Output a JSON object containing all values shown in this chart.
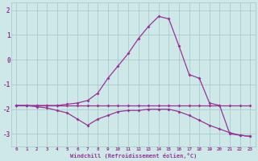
{
  "line1_x": [
    0,
    1,
    2,
    3,
    4,
    5,
    6,
    7,
    8,
    9,
    10,
    11,
    12,
    13,
    14,
    15,
    16,
    17,
    18,
    19,
    20,
    21,
    22,
    23
  ],
  "line1_y": [
    -1.85,
    -1.85,
    -1.85,
    -1.85,
    -1.85,
    -1.85,
    -1.85,
    -1.85,
    -1.85,
    -1.85,
    -1.85,
    -1.85,
    -1.85,
    -1.85,
    -1.85,
    -1.85,
    -1.85,
    -1.85,
    -1.85,
    -1.85,
    -1.85,
    -1.85,
    -1.85,
    -1.85
  ],
  "line2_x": [
    0,
    1,
    2,
    3,
    4,
    5,
    6,
    7,
    8,
    9,
    10,
    11,
    12,
    13,
    14,
    15,
    16,
    17,
    18,
    19,
    20,
    21,
    22,
    23
  ],
  "line2_y": [
    -1.85,
    -1.85,
    -1.9,
    -1.95,
    -2.05,
    -2.15,
    -2.4,
    -2.65,
    -2.4,
    -2.25,
    -2.1,
    -2.05,
    -2.05,
    -2.0,
    -2.0,
    -2.0,
    -2.1,
    -2.25,
    -2.45,
    -2.65,
    -2.8,
    -2.95,
    -3.05,
    -3.1
  ],
  "line3_x": [
    0,
    1,
    2,
    3,
    4,
    5,
    6,
    7,
    8,
    9,
    10,
    11,
    12,
    13,
    14,
    15,
    16,
    17,
    18,
    19,
    20,
    21,
    22,
    23
  ],
  "line3_y": [
    -1.85,
    -1.85,
    -1.85,
    -1.85,
    -1.85,
    -1.8,
    -1.75,
    -1.65,
    -1.35,
    -0.75,
    -0.25,
    0.25,
    0.85,
    1.35,
    1.75,
    1.65,
    0.55,
    -0.6,
    -0.75,
    -1.75,
    -1.85,
    -3.0,
    -3.05,
    -3.1
  ],
  "color": "#993399",
  "bg_color": "#cde8e7",
  "grid_color": "#a8cccc",
  "xlabel": "Windchill (Refroidissement éolien,°C)",
  "xticks": [
    0,
    1,
    2,
    3,
    4,
    5,
    6,
    7,
    8,
    9,
    10,
    11,
    12,
    13,
    14,
    15,
    16,
    17,
    18,
    19,
    20,
    21,
    22,
    23
  ],
  "yticks": [
    -3,
    -2,
    -1,
    0,
    1,
    2
  ],
  "ylim": [
    -3.5,
    2.3
  ],
  "xlim": [
    -0.5,
    23.5
  ]
}
